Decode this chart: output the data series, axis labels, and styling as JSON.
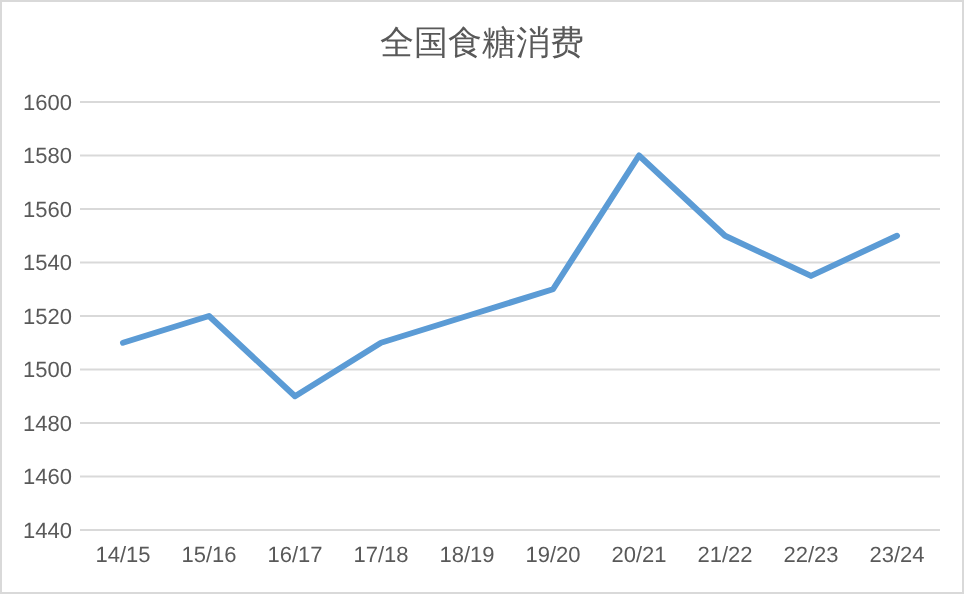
{
  "chart_data": {
    "type": "line",
    "title": "全国食糖消费",
    "categories": [
      "14/15",
      "15/16",
      "16/17",
      "17/18",
      "18/19",
      "19/20",
      "20/21",
      "21/22",
      "22/23",
      "23/24"
    ],
    "series": [
      {
        "color": "#5b9bd5",
        "values": [
          1510,
          1520,
          1490,
          1510,
          1520,
          1530,
          1580,
          1550,
          1535,
          1550
        ]
      }
    ],
    "ylim": [
      1440,
      1600
    ],
    "yticks": [
      1440,
      1460,
      1480,
      1500,
      1520,
      1540,
      1560,
      1580,
      1600
    ],
    "grid": "y",
    "marker": "none",
    "line_style": "solid"
  }
}
